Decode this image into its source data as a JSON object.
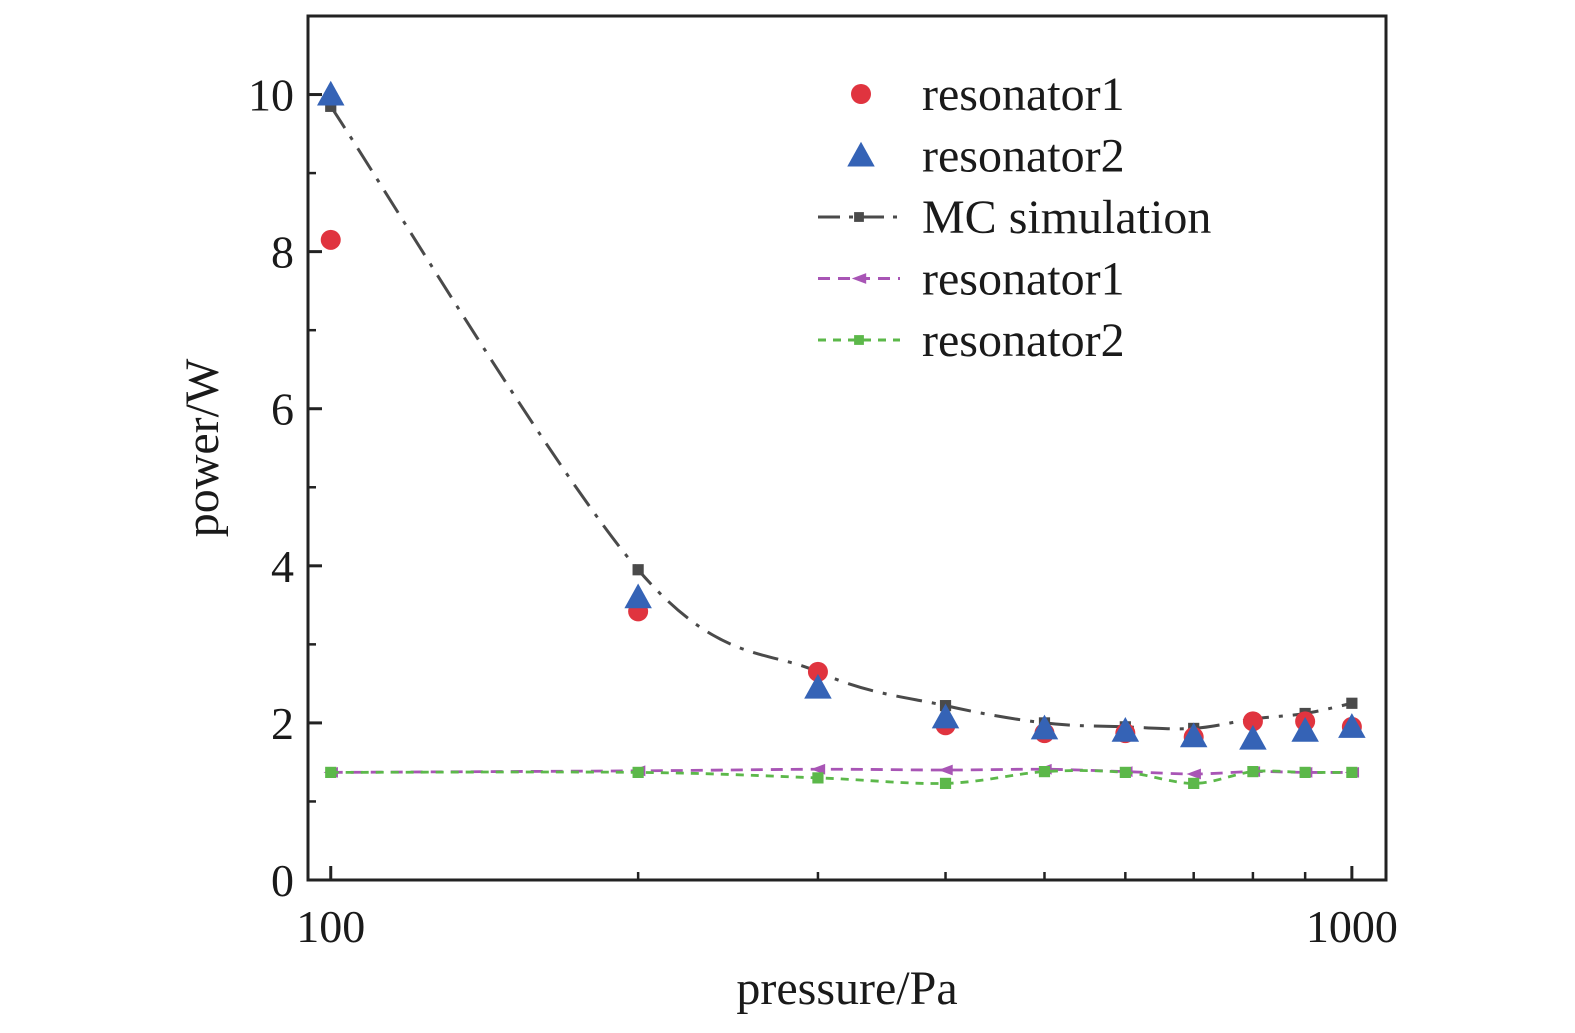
{
  "chart_data": {
    "type": "scatter",
    "xlabel": "pressure/Pa",
    "ylabel": "power/W",
    "x_scale": "log",
    "xlim": [
      95,
      1080
    ],
    "ylim": [
      0,
      11
    ],
    "x_ticks": [
      100,
      1000
    ],
    "x_minor_ticks": [
      200,
      300,
      400,
      500,
      600,
      700,
      800,
      900
    ],
    "y_ticks": [
      0,
      2,
      4,
      6,
      8,
      10
    ],
    "y_minor_ticks": [
      1,
      3,
      5,
      7,
      9
    ],
    "grid": false,
    "legend_position": "top-right",
    "series": [
      {
        "name": "resonator1",
        "style": "marker",
        "marker": "circle",
        "color": "#e0343f",
        "x": [
          100,
          200,
          300,
          400,
          500,
          600,
          700,
          800,
          900,
          1000
        ],
        "y": [
          8.15,
          3.42,
          2.65,
          1.97,
          1.87,
          1.87,
          1.82,
          2.02,
          2.02,
          1.95
        ]
      },
      {
        "name": "resonator2",
        "style": "marker",
        "marker": "triangle",
        "color": "#3563b6",
        "x": [
          100,
          200,
          300,
          400,
          500,
          600,
          700,
          800,
          900,
          1000
        ],
        "y": [
          10.0,
          3.6,
          2.45,
          2.07,
          1.93,
          1.9,
          1.83,
          1.8,
          1.9,
          1.95
        ]
      },
      {
        "name": "MC simulation",
        "style": "line",
        "dash": "dash-dot",
        "marker": "square",
        "color": "#4a4a4a",
        "x": [
          100,
          200,
          300,
          400,
          500,
          600,
          700,
          800,
          900,
          1000
        ],
        "y": [
          9.85,
          3.95,
          2.65,
          2.22,
          2.0,
          1.95,
          1.93,
          2.05,
          2.12,
          2.25
        ]
      },
      {
        "name": "resonator1",
        "style": "line",
        "dash": "dashed",
        "marker": "triangle-left",
        "color": "#a855b5",
        "x": [
          100,
          200,
          300,
          400,
          500,
          600,
          700,
          800,
          900,
          1000
        ],
        "y": [
          1.37,
          1.39,
          1.41,
          1.4,
          1.41,
          1.38,
          1.35,
          1.38,
          1.37,
          1.37
        ]
      },
      {
        "name": "resonator2",
        "style": "line",
        "dash": "dotted",
        "marker": "square",
        "color": "#5cb84a",
        "x": [
          100,
          200,
          300,
          400,
          500,
          600,
          700,
          800,
          900,
          1000
        ],
        "y": [
          1.37,
          1.37,
          1.3,
          1.23,
          1.38,
          1.37,
          1.23,
          1.38,
          1.37,
          1.37
        ]
      }
    ]
  }
}
